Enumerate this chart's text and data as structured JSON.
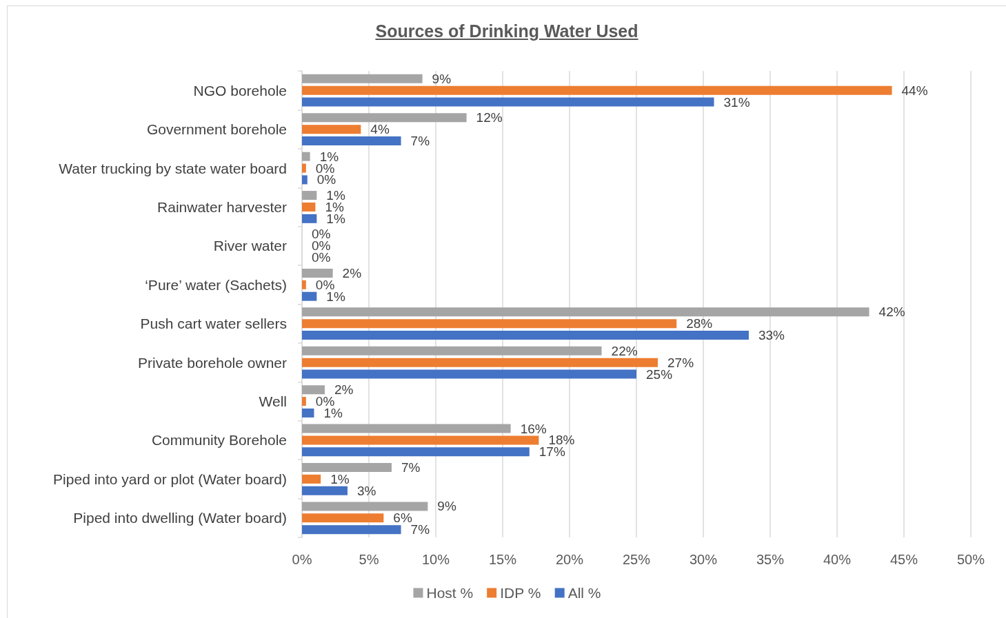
{
  "chart_data": {
    "type": "bar",
    "orientation": "horizontal",
    "title": "Sources of Drinking Water Used",
    "categories": [
      "NGO borehole",
      "Government borehole",
      "Water trucking by state water board",
      "Rainwater harvester",
      "River water",
      "‘Pure’ water (Sachets)",
      "Push cart water sellers",
      "Private borehole owner",
      "Well",
      "Community Borehole",
      "Piped into yard or plot (Water board)",
      "Piped into dwelling (Water board)"
    ],
    "series": [
      {
        "name": "Host %",
        "color": "#a5a5a5",
        "values": [
          9.0,
          12.3,
          0.6,
          1.1,
          0,
          2.3,
          42.4,
          22.4,
          1.7,
          15.6,
          6.7,
          9.4
        ],
        "value_labels": [
          "9%",
          "12%",
          "1%",
          "1%",
          "0%",
          "2%",
          "42%",
          "22%",
          "2%",
          "16%",
          "7%",
          "9%"
        ]
      },
      {
        "name": "IDP %",
        "color": "#ed7d31",
        "values": [
          44.1,
          4.4,
          0.3,
          1.0,
          0,
          0.3,
          28.0,
          26.6,
          0.3,
          17.7,
          1.4,
          6.1
        ],
        "value_labels": [
          "44%",
          "4%",
          "0%",
          "1%",
          "0%",
          "0%",
          "28%",
          "27%",
          "0%",
          "18%",
          "1%",
          "6%"
        ]
      },
      {
        "name": "All %",
        "color": "#4472c4",
        "values": [
          30.8,
          7.4,
          0.4,
          1.1,
          0,
          1.1,
          33.4,
          25.0,
          0.9,
          17.0,
          3.4,
          7.4
        ],
        "value_labels": [
          "31%",
          "7%",
          "0%",
          "1%",
          "0%",
          "1%",
          "33%",
          "25%",
          "1%",
          "17%",
          "3%",
          "7%"
        ]
      }
    ],
    "xlim": [
      0,
      50
    ],
    "xticks": [
      {
        "value": 0,
        "label": "0%"
      },
      {
        "value": 5,
        "label": "5%"
      },
      {
        "value": 10,
        "label": "10%"
      },
      {
        "value": 15,
        "label": "15%"
      },
      {
        "value": 20,
        "label": "20%"
      },
      {
        "value": 25,
        "label": "25%"
      },
      {
        "value": 30,
        "label": "30%"
      },
      {
        "value": 35,
        "label": "35%"
      },
      {
        "value": 40,
        "label": "40%"
      },
      {
        "value": 45,
        "label": "45%"
      },
      {
        "value": 50,
        "label": "50%"
      }
    ],
    "grid": "x",
    "legend": "bottom"
  }
}
